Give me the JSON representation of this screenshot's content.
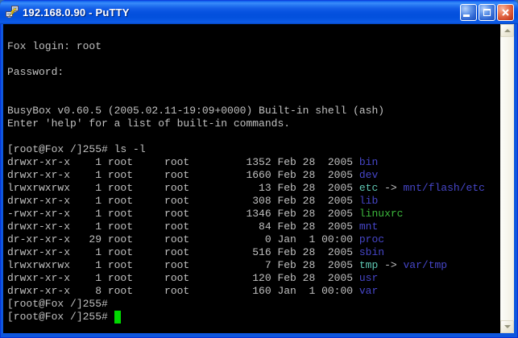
{
  "window": {
    "title": "192.168.0.90 - PuTTY"
  },
  "icons": {
    "app": "putty-two-terminals-lightning-icon",
    "minimize": "minimize-bar-icon",
    "maximize": "maximize-box-icon",
    "close": "close-x-icon",
    "scroll_up": "chevron-up-icon",
    "scroll_down": "chevron-down-icon"
  },
  "colors": {
    "titlebar_blue": "#0054e3",
    "window_border_blue": "#0e57dd",
    "close_button_red": "#d5492a",
    "terminal_bg": "#000000",
    "fg": "#c0c0c0",
    "blue": "#4646c8",
    "green": "#3cb83c",
    "cyan": "#5fc8b4",
    "cursor": "#00d800"
  },
  "terminal": {
    "lines": [
      [],
      [
        [
          "Fox login: root",
          "fg"
        ]
      ],
      [],
      [
        [
          "Password:",
          "fg"
        ]
      ],
      [],
      [],
      [
        [
          "BusyBox v0.60.5 (2005.02.11-19:09+0000) Built-in shell (ash)",
          "fg"
        ]
      ],
      [
        [
          "Enter 'help' for a list of built-in commands.",
          "fg"
        ]
      ],
      [],
      [
        [
          "[root@Fox /]255# ls -l",
          "fg"
        ]
      ],
      [
        [
          "drwxr-xr-x    1 root     root         1352 Feb 28  2005 ",
          "fg"
        ],
        [
          "bin",
          "blue"
        ]
      ],
      [
        [
          "drwxr-xr-x    1 root     root         1660 Feb 28  2005 ",
          "fg"
        ],
        [
          "dev",
          "blue"
        ]
      ],
      [
        [
          "lrwxrwxrwx    1 root     root           13 Feb 28  2005 ",
          "fg"
        ],
        [
          "etc",
          "cyan"
        ],
        [
          " -> ",
          "fg"
        ],
        [
          "mnt/flash/etc",
          "blue"
        ]
      ],
      [
        [
          "drwxr-xr-x    1 root     root          308 Feb 28  2005 ",
          "fg"
        ],
        [
          "lib",
          "blue"
        ]
      ],
      [
        [
          "-rwxr-xr-x    1 root     root         1346 Feb 28  2005 ",
          "fg"
        ],
        [
          "linuxrc",
          "green"
        ]
      ],
      [
        [
          "drwxr-xr-x    1 root     root           84 Feb 28  2005 ",
          "fg"
        ],
        [
          "mnt",
          "blue"
        ]
      ],
      [
        [
          "dr-xr-xr-x   29 root     root            0 Jan  1 00:00 ",
          "fg"
        ],
        [
          "proc",
          "blue"
        ]
      ],
      [
        [
          "drwxr-xr-x    1 root     root          516 Feb 28  2005 ",
          "fg"
        ],
        [
          "sbin",
          "blue"
        ]
      ],
      [
        [
          "lrwxrwxrwx    1 root     root            7 Feb 28  2005 ",
          "fg"
        ],
        [
          "tmp",
          "cyan"
        ],
        [
          " -> ",
          "fg"
        ],
        [
          "var/tmp",
          "blue"
        ]
      ],
      [
        [
          "drwxr-xr-x    1 root     root          120 Feb 28  2005 ",
          "fg"
        ],
        [
          "usr",
          "blue"
        ]
      ],
      [
        [
          "drwxr-xr-x    8 root     root          160 Jan  1 00:00 ",
          "fg"
        ],
        [
          "var",
          "blue"
        ]
      ],
      [
        [
          "[root@Fox /]255#",
          "fg"
        ]
      ],
      [
        [
          "[root@Fox /]255# ",
          "fg"
        ],
        [
          " ",
          "cursor"
        ]
      ]
    ]
  }
}
